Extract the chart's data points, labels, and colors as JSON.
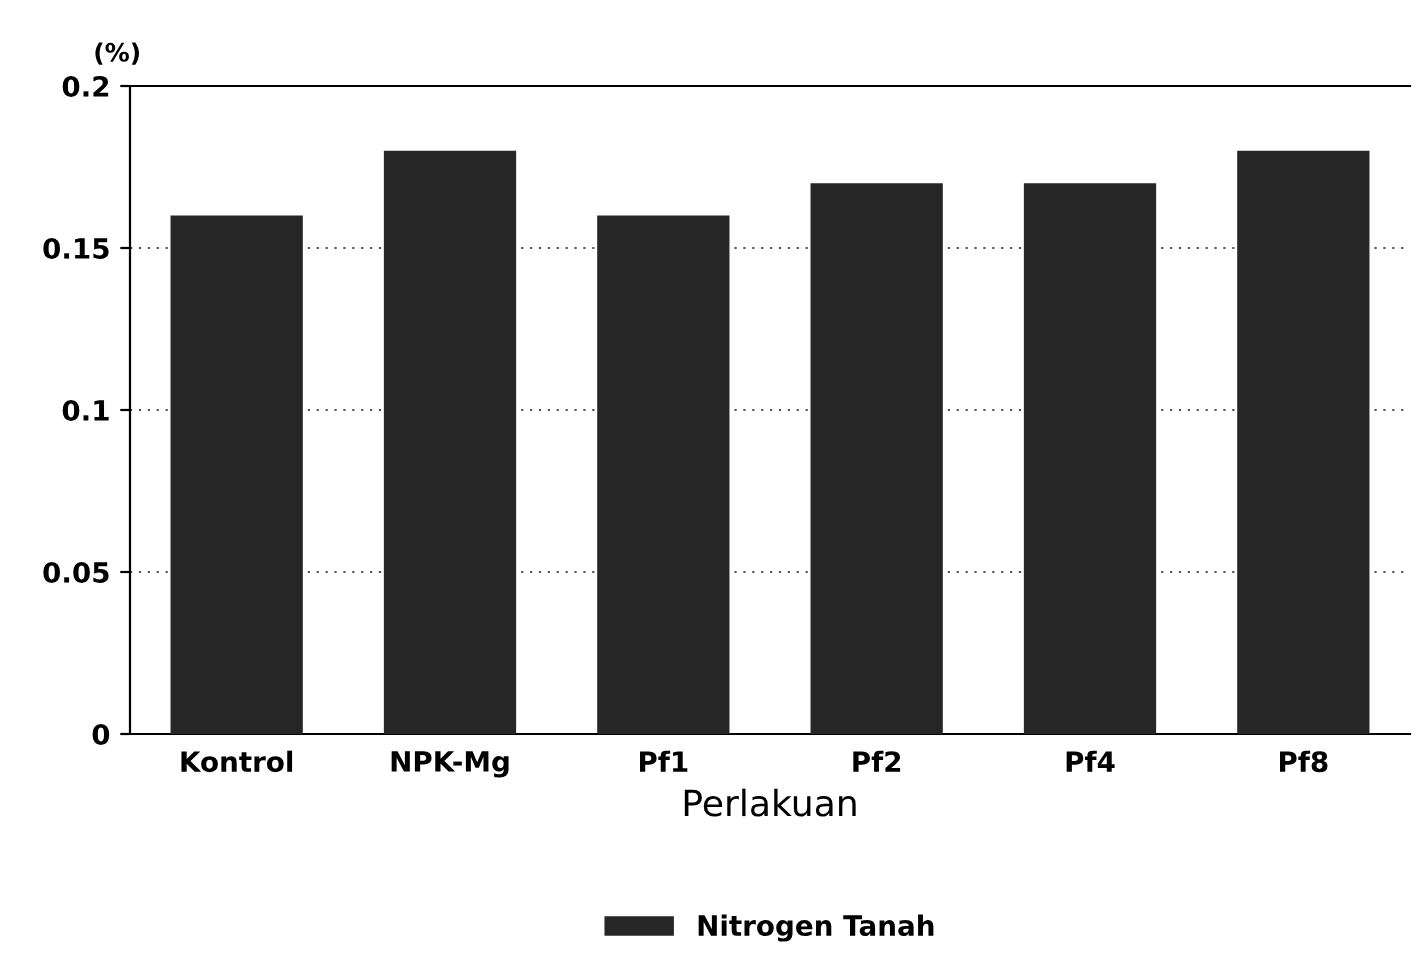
{
  "chart_data": {
    "type": "bar",
    "xlabel": "Perlakuan",
    "ylabel": "(%)",
    "categories": [
      "Kontrol",
      "NPK-Mg",
      "Pf1",
      "Pf2",
      "Pf4",
      "Pf8"
    ],
    "series": [
      {
        "name": "Nitrogen Tanah",
        "color": "#262626",
        "values": [
          0.16,
          0.18,
          0.16,
          0.17,
          0.17,
          0.18
        ]
      }
    ],
    "ylim": [
      0,
      0.2
    ],
    "yticks": [
      0,
      0.05,
      0.1,
      0.15,
      0.2
    ],
    "grid": "y",
    "legend": "bottom"
  }
}
